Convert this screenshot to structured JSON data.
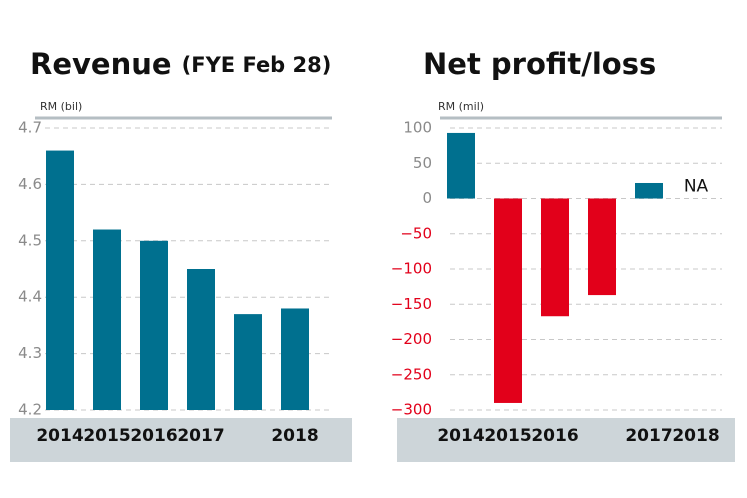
{
  "chart_data": [
    {
      "type": "bar",
      "title": "Revenue",
      "subtitle": "(FYE Feb 28)",
      "y_label": "RM (bil)",
      "categories": [
        "2014",
        "2015",
        "2016",
        "2017",
        null,
        "2018"
      ],
      "values": [
        4.66,
        4.52,
        4.5,
        4.45,
        4.37,
        4.38
      ],
      "ylim": [
        4.2,
        4.7
      ],
      "yticks": [
        4.2,
        4.3,
        4.4,
        4.5,
        4.6,
        4.7
      ],
      "colors": {
        "positive": "#00708f",
        "negative": "#e2001a"
      },
      "grid": true
    },
    {
      "type": "bar",
      "title": "Net profit/loss",
      "y_label": "RM (mil)",
      "categories": [
        "2014",
        "2015",
        "2016",
        null,
        "2017",
        "2018"
      ],
      "values": [
        93,
        -290,
        -167,
        -137,
        22,
        null
      ],
      "annotation": "NA",
      "ylim": [
        -300,
        100
      ],
      "yticks": [
        {
          "value": -300,
          "label": "−300"
        },
        {
          "value": -250,
          "label": "−250"
        },
        {
          "value": -200,
          "label": "−200"
        },
        {
          "value": -150,
          "label": "−150"
        },
        {
          "value": -100,
          "label": "−100"
        },
        {
          "value": -50,
          "label": "−50"
        },
        0,
        50,
        100
      ],
      "colors": {
        "positive": "#00708f",
        "negative": "#e2001a"
      },
      "grid": true
    }
  ]
}
